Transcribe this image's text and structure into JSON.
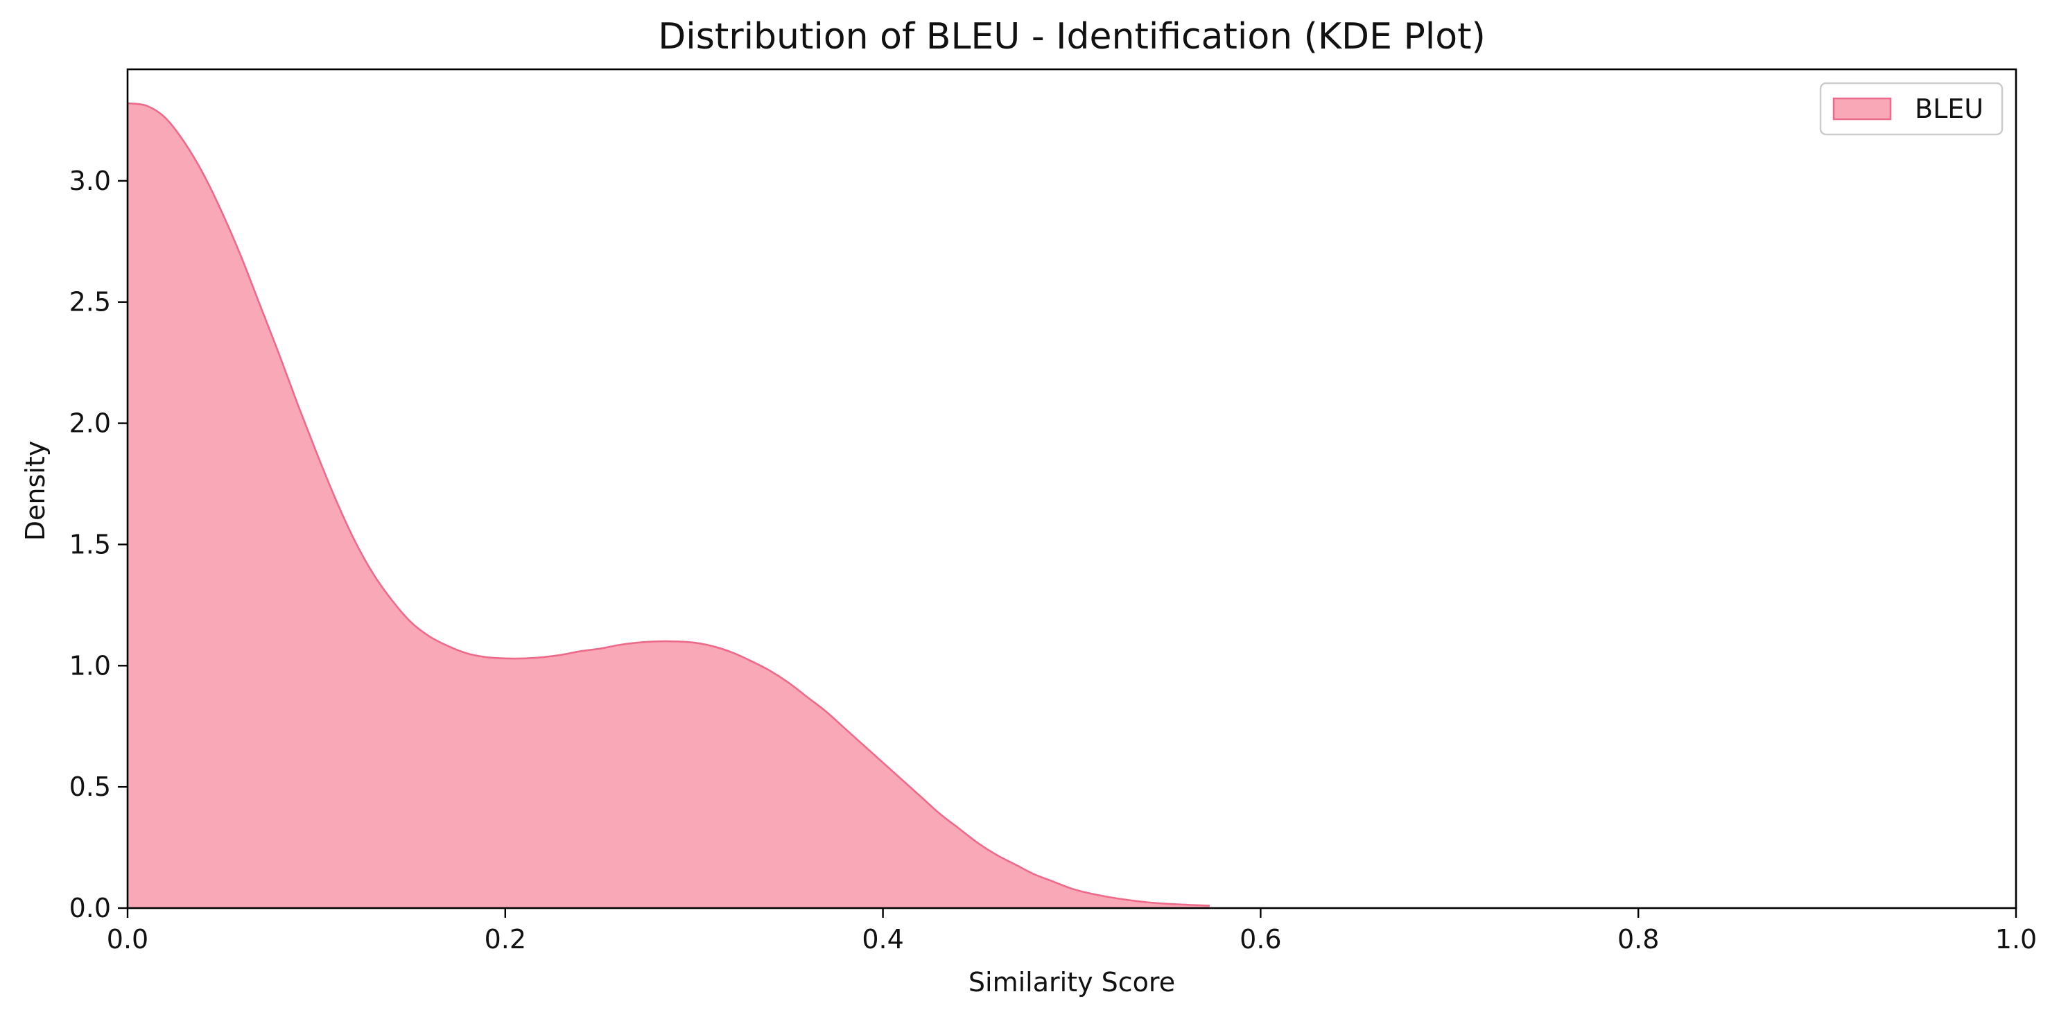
{
  "chart_data": {
    "type": "area",
    "title": "Distribution of BLEU - Identification (KDE Plot)",
    "xlabel": "Similarity Score",
    "ylabel": "Density",
    "xlim": [
      0.0,
      1.0
    ],
    "ylim": [
      0.0,
      3.46
    ],
    "x_ticks": [
      0.0,
      0.2,
      0.4,
      0.6,
      0.8,
      1.0
    ],
    "x_tick_labels": [
      "0.0",
      "0.2",
      "0.4",
      "0.6",
      "0.8",
      "1.0"
    ],
    "y_ticks": [
      0.0,
      0.5,
      1.0,
      1.5,
      2.0,
      2.5,
      3.0
    ],
    "y_tick_labels": [
      "0.0",
      "0.5",
      "1.0",
      "1.5",
      "2.0",
      "2.5",
      "3.0"
    ],
    "grid": false,
    "legend_position": "top-right",
    "series": [
      {
        "name": "BLEU",
        "fill_color": "#f9a8b8",
        "line_color": "#ee6a8a",
        "x": [
          0.0,
          0.01,
          0.02,
          0.03,
          0.04,
          0.05,
          0.06,
          0.07,
          0.08,
          0.09,
          0.1,
          0.11,
          0.12,
          0.13,
          0.14,
          0.15,
          0.16,
          0.17,
          0.18,
          0.19,
          0.2,
          0.21,
          0.22,
          0.23,
          0.24,
          0.25,
          0.26,
          0.27,
          0.28,
          0.29,
          0.3,
          0.31,
          0.32,
          0.33,
          0.34,
          0.35,
          0.36,
          0.37,
          0.38,
          0.39,
          0.4,
          0.41,
          0.42,
          0.43,
          0.44,
          0.45,
          0.46,
          0.47,
          0.48,
          0.49,
          0.5,
          0.51,
          0.52,
          0.53,
          0.54,
          0.55,
          0.56,
          0.57,
          0.573
        ],
        "y": [
          3.32,
          3.31,
          3.26,
          3.16,
          3.03,
          2.87,
          2.69,
          2.49,
          2.29,
          2.08,
          1.88,
          1.69,
          1.52,
          1.38,
          1.27,
          1.18,
          1.12,
          1.08,
          1.05,
          1.035,
          1.03,
          1.03,
          1.035,
          1.045,
          1.06,
          1.07,
          1.085,
          1.095,
          1.1,
          1.1,
          1.095,
          1.08,
          1.055,
          1.02,
          0.98,
          0.93,
          0.87,
          0.81,
          0.74,
          0.67,
          0.6,
          0.53,
          0.46,
          0.39,
          0.33,
          0.27,
          0.22,
          0.18,
          0.14,
          0.11,
          0.08,
          0.06,
          0.045,
          0.033,
          0.024,
          0.018,
          0.014,
          0.011,
          0.01
        ]
      }
    ]
  }
}
